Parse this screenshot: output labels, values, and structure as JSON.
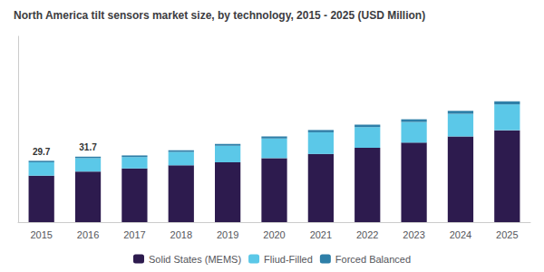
{
  "chart_data": {
    "type": "bar",
    "title": "North America tilt sensors market size, by technology, 2015 - 2025 (USD Million)",
    "categories": [
      "2015",
      "2016",
      "2017",
      "2018",
      "2019",
      "2020",
      "2021",
      "2022",
      "2023",
      "2024",
      "2025"
    ],
    "stacked": true,
    "series": [
      {
        "name": "Solid States (MEMS)",
        "color": "#2d1b4e",
        "values": [
          22.5,
          24.5,
          26.0,
          27.5,
          29.0,
          31.0,
          33.0,
          36.0,
          38.5,
          41.5,
          44.5
        ]
      },
      {
        "name": "Fliud-Filled",
        "color": "#5bc8e8",
        "values": [
          6.5,
          6.5,
          5.5,
          6.5,
          8.0,
          9.5,
          10.5,
          10.0,
          10.0,
          11.0,
          12.5
        ]
      },
      {
        "name": "Forced Balanced",
        "color": "#2e7fa8",
        "values": [
          0.7,
          0.7,
          0.8,
          0.8,
          0.9,
          1.0,
          1.1,
          1.2,
          1.3,
          1.4,
          1.5
        ]
      }
    ],
    "annotations": [
      {
        "category": "2015",
        "text": "29.7"
      },
      {
        "category": "2016",
        "text": "31.7"
      }
    ],
    "ylim": [
      0,
      90
    ],
    "grid": false,
    "legend": "bottom",
    "tick_labels": "x"
  }
}
